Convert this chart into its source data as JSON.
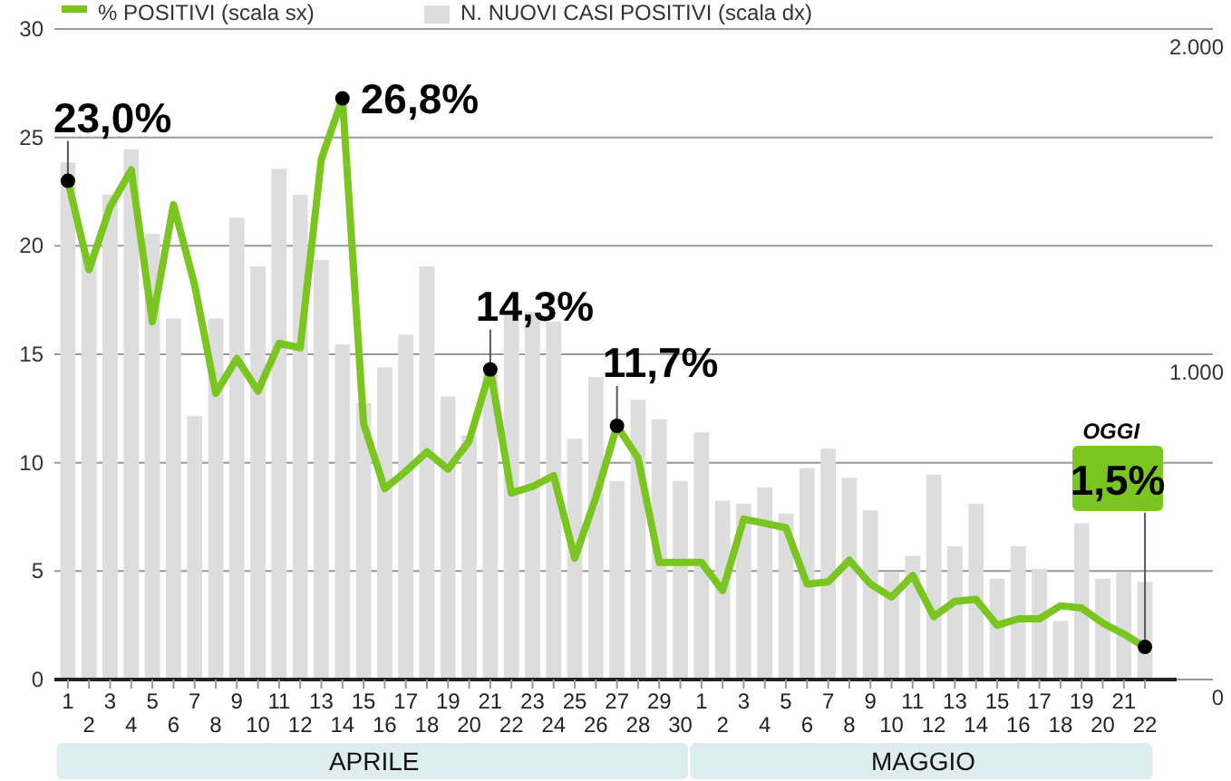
{
  "chart_data": {
    "type": "bar",
    "categories": [
      "1",
      "2",
      "3",
      "4",
      "5",
      "6",
      "7",
      "8",
      "9",
      "10",
      "11",
      "12",
      "13",
      "14",
      "15",
      "16",
      "17",
      "18",
      "19",
      "20",
      "21",
      "22",
      "23",
      "24",
      "25",
      "26",
      "27",
      "28",
      "29",
      "30",
      "1",
      "2",
      "3",
      "4",
      "5",
      "6",
      "7",
      "8",
      "9",
      "10",
      "11",
      "12",
      "13",
      "14",
      "15",
      "16",
      "17",
      "18",
      "19",
      "20",
      "21",
      "22"
    ],
    "series": [
      {
        "name": "N. NUOVI CASI POSITIVI (scala dx)",
        "axis": "y2",
        "color": "#dddddd",
        "values": [
          1590,
          1310,
          1490,
          1630,
          1370,
          1110,
          810,
          1110,
          1420,
          1270,
          1570,
          1490,
          1290,
          1030,
          850,
          960,
          1060,
          1270,
          870,
          750,
          940,
          1130,
          1130,
          1100,
          740,
          930,
          610,
          860,
          800,
          610,
          760,
          550,
          540,
          590,
          510,
          650,
          710,
          620,
          520,
          330,
          380,
          630,
          410,
          540,
          310,
          410,
          340,
          180,
          480,
          310,
          330,
          300
        ]
      },
      {
        "name": "% POSITIVI (scala sx)",
        "type": "line",
        "color": "#7ac520",
        "values": [
          23.0,
          18.9,
          21.8,
          23.5,
          16.5,
          21.9,
          18.2,
          13.2,
          14.8,
          13.3,
          15.5,
          15.3,
          24.0,
          26.8,
          11.8,
          8.8,
          9.6,
          10.5,
          9.7,
          11.0,
          14.3,
          8.6,
          8.9,
          9.4,
          5.6,
          8.4,
          11.7,
          10.2,
          5.4,
          5.4,
          5.4,
          4.1,
          7.4,
          7.2,
          7.0,
          4.4,
          4.5,
          5.5,
          4.4,
          3.8,
          4.8,
          2.9,
          3.6,
          3.7,
          2.5,
          2.8,
          2.8,
          3.4,
          3.3,
          2.6,
          2.1,
          1.5
        ],
        "value_labels": [
          "23,0%",
          null,
          null,
          null,
          null,
          null,
          null,
          null,
          null,
          null,
          null,
          null,
          null,
          "26,8%",
          null,
          null,
          null,
          null,
          null,
          null,
          "14,3%",
          null,
          null,
          null,
          null,
          null,
          "11,7%",
          null,
          null,
          null,
          null,
          null,
          null,
          null,
          null,
          null,
          null,
          null,
          null,
          null,
          null,
          null,
          null,
          null,
          null,
          null,
          null,
          null,
          null,
          null,
          null,
          "1,5%"
        ]
      }
    ],
    "ylim": [
      0,
      30
    ],
    "yticks": [
      0,
      5,
      10,
      15,
      20,
      25,
      30
    ],
    "y2lim": [
      0,
      2000
    ],
    "y2ticks": [
      0,
      {
        "value": 1000,
        "label": "1.000"
      },
      {
        "value": 2000,
        "label": "2.000"
      }
    ],
    "grid": "y",
    "legend": "top left",
    "annotations": [
      "APRILE",
      "MAGGIO",
      "OGGI"
    ]
  }
}
